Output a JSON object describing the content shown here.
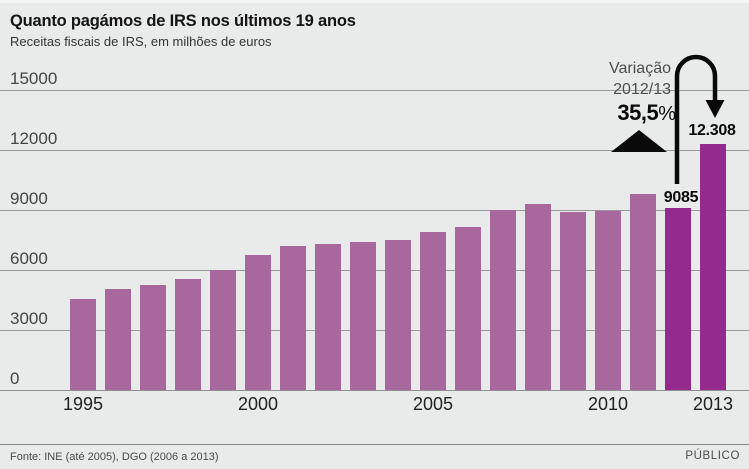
{
  "header": {
    "title": "Quanto pagámos de IRS nos últimos 19 anos",
    "subtitle": "Receitas fiscais de IRS, em milhões de euros"
  },
  "annotation": {
    "label_line1": "Variação",
    "label_line2": "2012/13",
    "pct_value": "35,5",
    "pct_sign": "%",
    "value_2012_label": "9085",
    "value_2013_label": "12.308"
  },
  "footer": {
    "source": "Fonte: INE (até 2005), DGO (2006 a 2013)",
    "brand": "PÚBLICO"
  },
  "colors": {
    "background": "#e9eaea",
    "bar": "#a8689e",
    "bar_highlight": "#942a8c",
    "gridline": "#9a9a9a",
    "annotation_black": "#0a0a0a"
  },
  "chart_data": {
    "type": "bar",
    "title": "Quanto pagámos de IRS nos últimos 19 anos",
    "subtitle": "Receitas fiscais de IRS, em milhões de euros",
    "unit": "milhões de euros",
    "categories": [
      1995,
      1996,
      1997,
      1998,
      1999,
      2000,
      2001,
      2002,
      2003,
      2004,
      2005,
      2006,
      2007,
      2008,
      2009,
      2010,
      2011,
      2012,
      2013
    ],
    "values": [
      4550,
      5050,
      5250,
      5550,
      6000,
      6750,
      7200,
      7290,
      7420,
      7490,
      7900,
      8170,
      9000,
      9300,
      8920,
      8930,
      9790,
      9085,
      12308
    ],
    "highlighted_categories": [
      2012,
      2013
    ],
    "data_labels": {
      "2012": "9085",
      "2013": "12.308"
    },
    "x_tick_labels": [
      "1995",
      "2000",
      "2005",
      "2010",
      "2013"
    ],
    "y_ticks": [
      0,
      3000,
      6000,
      9000,
      12000,
      15000
    ],
    "ylim": [
      0,
      15000
    ],
    "grid": "horizontal",
    "legend": "none",
    "change_2012_2013_pct": "35,5%"
  }
}
